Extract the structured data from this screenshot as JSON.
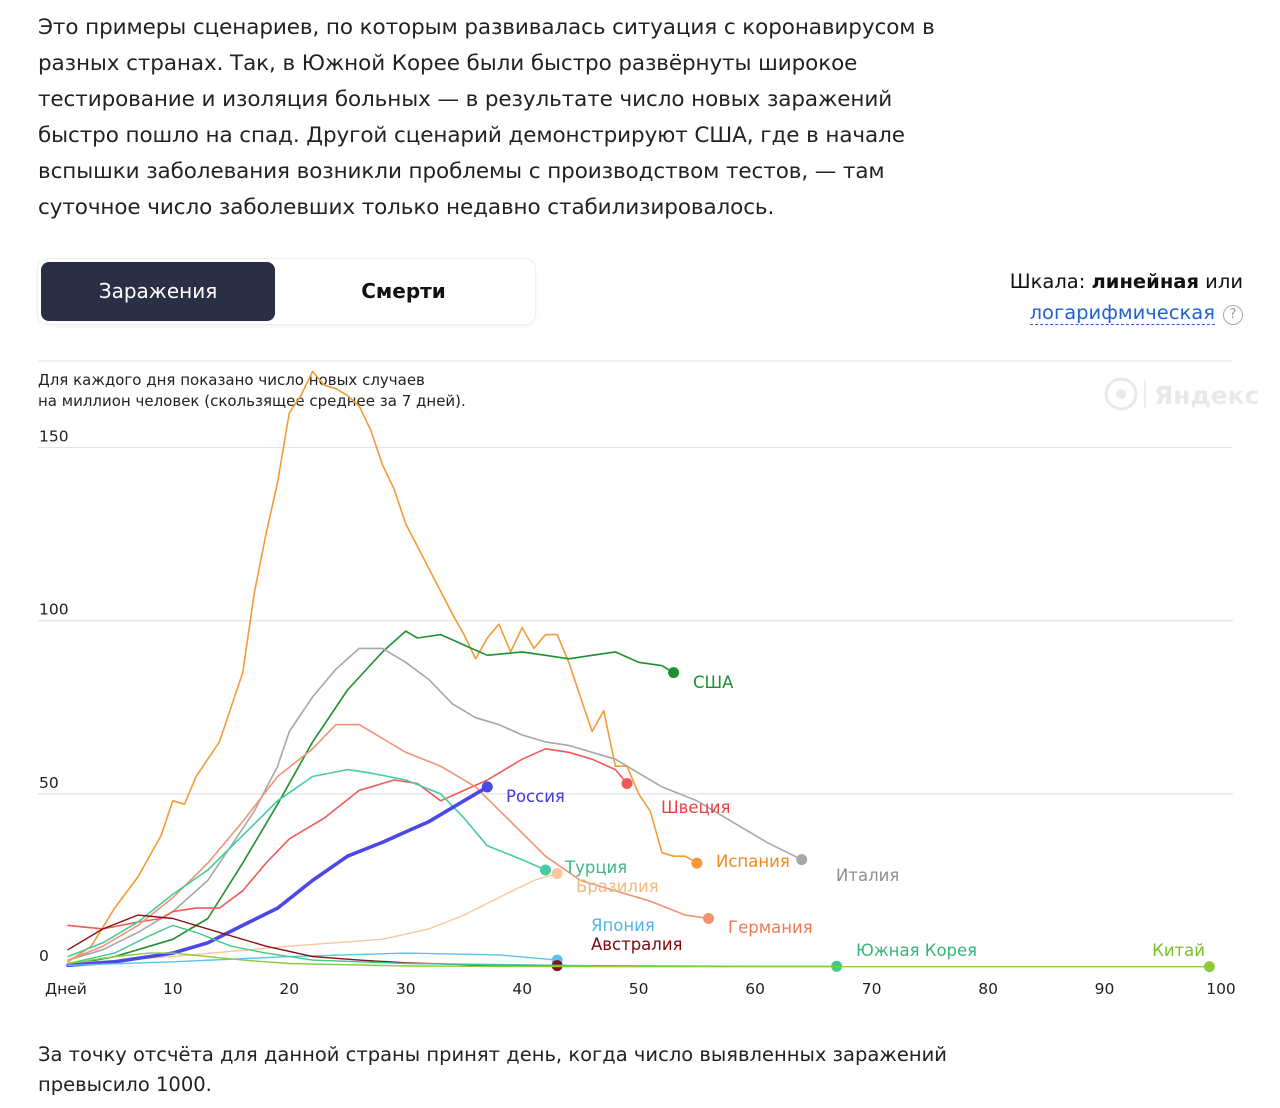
{
  "intro_text": "Это примеры сценариев, по которым развивалась ситуация с коронавирусом в разных странах. Так, в Южной Корее были быстро развёрнуты широкое тестирование и изоляция больных — в результате число новых заражений быстро пошло на спад. Другой сценарий демонстрируют США, где в начале вспышки заболевания возникли проблемы с производством тестов, — там суточное число заболевших только недавно стабилизировалось.",
  "tabs": {
    "active": "Заражения",
    "inactive": "Смерти"
  },
  "scale": {
    "prefix": "Шкала: ",
    "current": "линейная",
    "or": " или",
    "alternative": "логарифмическая",
    "help": "?"
  },
  "footnote": "За точку отсчёта для данной страны принят день, когда число выявленных заражений превысило 1000.",
  "chart_data": {
    "type": "line",
    "description_line1": "Для каждого дня показано число новых случаев",
    "description_line2": "на миллион человек (скользящее среднее за 7 дней).",
    "watermark": "Яндекс",
    "xlabel": "Дней",
    "xlim": [
      1,
      100
    ],
    "ylim": [
      0,
      175
    ],
    "x_ticks": [
      10,
      20,
      30,
      40,
      50,
      60,
      70,
      80,
      90,
      100
    ],
    "y_ticks": [
      0,
      50,
      100,
      150
    ],
    "grid": true,
    "series": [
      {
        "name": "Испания",
        "color": "#f59a37",
        "width": 1.6,
        "label_color": "#f08a1f",
        "points": [
          [
            1,
            1.5
          ],
          [
            3,
            6
          ],
          [
            5,
            17
          ],
          [
            7,
            26
          ],
          [
            9,
            38
          ],
          [
            10,
            48
          ],
          [
            11,
            47
          ],
          [
            12,
            55
          ],
          [
            14,
            65
          ],
          [
            16,
            85
          ],
          [
            17,
            108
          ],
          [
            18,
            125
          ],
          [
            19,
            140
          ],
          [
            20,
            160
          ],
          [
            21,
            165
          ],
          [
            22,
            172
          ],
          [
            23,
            168
          ],
          [
            24,
            167
          ],
          [
            25,
            165
          ],
          [
            26,
            162
          ],
          [
            27,
            155
          ],
          [
            28,
            145
          ],
          [
            29,
            138
          ],
          [
            30,
            128
          ],
          [
            32,
            115
          ],
          [
            34,
            102
          ],
          [
            35,
            96
          ],
          [
            36,
            89
          ],
          [
            37,
            95
          ],
          [
            38,
            99
          ],
          [
            39,
            91
          ],
          [
            40,
            98
          ],
          [
            41,
            92
          ],
          [
            42,
            96
          ],
          [
            43,
            96
          ],
          [
            44,
            88
          ],
          [
            45,
            78
          ],
          [
            46,
            68
          ],
          [
            47,
            74
          ],
          [
            48,
            58
          ],
          [
            49,
            58
          ],
          [
            50,
            50
          ],
          [
            51,
            45
          ],
          [
            52,
            33
          ],
          [
            53,
            32
          ],
          [
            54,
            32
          ],
          [
            55,
            30
          ]
        ]
      },
      {
        "name": "США",
        "color": "#1f8f2e",
        "width": 1.6,
        "label_color": "#1f8f2e",
        "points": [
          [
            1,
            0.5
          ],
          [
            5,
            3
          ],
          [
            10,
            8
          ],
          [
            13,
            14
          ],
          [
            16,
            30
          ],
          [
            19,
            47
          ],
          [
            22,
            65
          ],
          [
            25,
            80
          ],
          [
            28,
            91
          ],
          [
            30,
            97
          ],
          [
            31,
            95
          ],
          [
            33,
            96
          ],
          [
            35,
            93
          ],
          [
            37,
            90
          ],
          [
            40,
            91
          ],
          [
            42,
            90
          ],
          [
            44,
            89
          ],
          [
            46,
            90
          ],
          [
            48,
            91
          ],
          [
            50,
            88
          ],
          [
            52,
            87
          ],
          [
            53,
            85
          ]
        ]
      },
      {
        "name": "Италия",
        "color": "#a7a7a7",
        "width": 1.6,
        "label_color": "#8f8f8f",
        "points": [
          [
            1,
            2
          ],
          [
            4,
            5
          ],
          [
            7,
            10
          ],
          [
            10,
            16
          ],
          [
            13,
            25
          ],
          [
            15,
            35
          ],
          [
            17,
            45
          ],
          [
            19,
            58
          ],
          [
            20,
            68
          ],
          [
            22,
            78
          ],
          [
            24,
            86
          ],
          [
            26,
            92
          ],
          [
            28,
            92
          ],
          [
            30,
            88
          ],
          [
            32,
            83
          ],
          [
            34,
            76
          ],
          [
            36,
            72
          ],
          [
            38,
            70
          ],
          [
            40,
            67
          ],
          [
            42,
            65
          ],
          [
            44,
            64
          ],
          [
            46,
            62
          ],
          [
            48,
            60
          ],
          [
            50,
            56
          ],
          [
            52,
            52
          ],
          [
            55,
            48
          ],
          [
            58,
            42
          ],
          [
            61,
            36
          ],
          [
            64,
            31
          ]
        ]
      },
      {
        "name": "Швеция",
        "color": "#ee5a5a",
        "width": 1.6,
        "label_color": "#e74343",
        "points": [
          [
            1,
            12
          ],
          [
            4,
            11
          ],
          [
            7,
            13
          ],
          [
            9,
            14
          ],
          [
            10,
            16
          ],
          [
            12,
            17
          ],
          [
            14,
            17
          ],
          [
            16,
            22
          ],
          [
            18,
            30
          ],
          [
            20,
            37
          ],
          [
            23,
            43
          ],
          [
            26,
            51
          ],
          [
            29,
            54
          ],
          [
            31,
            53
          ],
          [
            33,
            48
          ],
          [
            35,
            51
          ],
          [
            37,
            54
          ],
          [
            40,
            60
          ],
          [
            42,
            63
          ],
          [
            44,
            62
          ],
          [
            46,
            60
          ],
          [
            48,
            57
          ],
          [
            49,
            53
          ]
        ]
      },
      {
        "name": "Германия",
        "color": "#f29373",
        "width": 1.6,
        "label_color": "#ee7a55",
        "points": [
          [
            1,
            2
          ],
          [
            4,
            6
          ],
          [
            7,
            12
          ],
          [
            10,
            20
          ],
          [
            13,
            30
          ],
          [
            16,
            42
          ],
          [
            19,
            55
          ],
          [
            22,
            63
          ],
          [
            24,
            70
          ],
          [
            26,
            70
          ],
          [
            28,
            66
          ],
          [
            30,
            62
          ],
          [
            33,
            58
          ],
          [
            36,
            52
          ],
          [
            39,
            42
          ],
          [
            42,
            32
          ],
          [
            45,
            25
          ],
          [
            48,
            22
          ],
          [
            51,
            19
          ],
          [
            54,
            15
          ],
          [
            56,
            14
          ]
        ]
      },
      {
        "name": "Турция",
        "color": "#45cca0",
        "width": 1.6,
        "label_color": "#3cb889",
        "points": [
          [
            1,
            3
          ],
          [
            4,
            7
          ],
          [
            7,
            13
          ],
          [
            10,
            21
          ],
          [
            13,
            28
          ],
          [
            16,
            38
          ],
          [
            19,
            48
          ],
          [
            22,
            55
          ],
          [
            25,
            57
          ],
          [
            27,
            56
          ],
          [
            30,
            54
          ],
          [
            33,
            50
          ],
          [
            35,
            43
          ],
          [
            37,
            35
          ],
          [
            40,
            31
          ],
          [
            42,
            28
          ]
        ]
      },
      {
        "name": "Бразилия",
        "color": "#f7c89e",
        "width": 1.4,
        "label_color": "#f3b981",
        "points": [
          [
            1,
            1
          ],
          [
            10,
            3
          ],
          [
            20,
            6
          ],
          [
            28,
            8
          ],
          [
            32,
            11
          ],
          [
            35,
            15
          ],
          [
            38,
            20
          ],
          [
            41,
            25
          ],
          [
            43,
            27
          ]
        ]
      },
      {
        "name": "Россия",
        "color": "#4b48e8",
        "width": 3.6,
        "label_color": "#3f39de",
        "points": [
          [
            1,
            0.5
          ],
          [
            5,
            1.5
          ],
          [
            10,
            4
          ],
          [
            13,
            7
          ],
          [
            16,
            12
          ],
          [
            19,
            17
          ],
          [
            22,
            25
          ],
          [
            25,
            32
          ],
          [
            28,
            36
          ],
          [
            30,
            39
          ],
          [
            32,
            42
          ],
          [
            34,
            46
          ],
          [
            36,
            50
          ],
          [
            37,
            52
          ]
        ]
      },
      {
        "name": "Япония",
        "color": "#5ec1ea",
        "width": 1.4,
        "label_color": "#4fb6e6",
        "points": [
          [
            1,
            0.5
          ],
          [
            10,
            1.5
          ],
          [
            20,
            3
          ],
          [
            30,
            4
          ],
          [
            38,
            3.5
          ],
          [
            43,
            2
          ]
        ]
      },
      {
        "name": "Австралия",
        "color": "#8b0f0f",
        "width": 1.4,
        "label_color": "#7a0a0a",
        "points": [
          [
            1,
            5
          ],
          [
            4,
            11
          ],
          [
            7,
            15
          ],
          [
            10,
            14
          ],
          [
            14,
            10
          ],
          [
            18,
            6
          ],
          [
            22,
            3
          ],
          [
            26,
            2
          ],
          [
            30,
            1.2
          ],
          [
            36,
            0.6
          ],
          [
            43,
            0.4
          ]
        ]
      },
      {
        "name": "Южная Корея",
        "color": "#42c98c",
        "width": 1.4,
        "label_color": "#35b67b",
        "points": [
          [
            1,
            1
          ],
          [
            5,
            4
          ],
          [
            8,
            9
          ],
          [
            10,
            12
          ],
          [
            12,
            10
          ],
          [
            15,
            6
          ],
          [
            18,
            4
          ],
          [
            22,
            2
          ],
          [
            30,
            1
          ],
          [
            45,
            0.4
          ],
          [
            60,
            0.2
          ],
          [
            67,
            0.2
          ]
        ]
      },
      {
        "name": "Китай",
        "color": "#8ccb3c",
        "width": 1.4,
        "label_color": "#7bbd2c",
        "points": [
          [
            1,
            1
          ],
          [
            5,
            3
          ],
          [
            8,
            4
          ],
          [
            10,
            4
          ],
          [
            13,
            3
          ],
          [
            16,
            2
          ],
          [
            20,
            1
          ],
          [
            30,
            0.3
          ],
          [
            50,
            0.1
          ],
          [
            70,
            0.1
          ],
          [
            99,
            0.1
          ]
        ]
      }
    ]
  }
}
